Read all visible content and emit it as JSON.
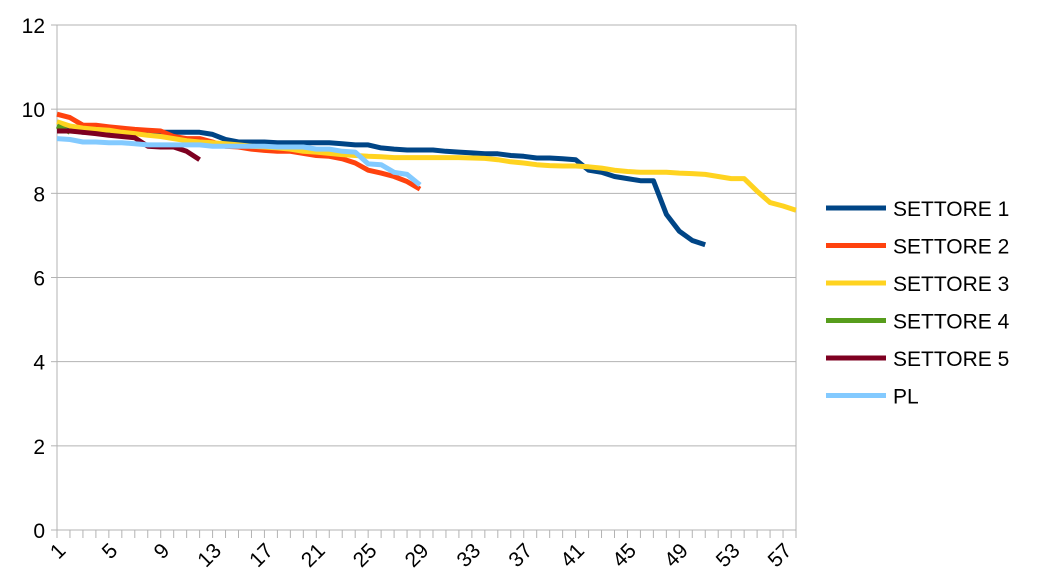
{
  "chart_data": {
    "type": "line",
    "title": "",
    "xlabel": "",
    "ylabel": "",
    "ylim": [
      0,
      12
    ],
    "yticks": [
      0,
      2,
      4,
      6,
      8,
      10,
      12
    ],
    "xlim": [
      1,
      58
    ],
    "xtick_labels": [
      "1",
      "5",
      "9",
      "13",
      "17",
      "21",
      "25",
      "29",
      "33",
      "37",
      "41",
      "45",
      "49",
      "53",
      "57"
    ],
    "grid": "horizontal",
    "legend_position": "right",
    "series": [
      {
        "name": "SETTORE 1",
        "color": "#004586",
        "values": [
          9.6,
          9.5,
          9.45,
          9.45,
          9.45,
          9.45,
          9.45,
          9.45,
          9.45,
          9.45,
          9.45,
          9.45,
          9.4,
          9.28,
          9.22,
          9.22,
          9.22,
          9.2,
          9.2,
          9.2,
          9.2,
          9.2,
          9.18,
          9.15,
          9.15,
          9.08,
          9.05,
          9.03,
          9.03,
          9.03,
          9.0,
          8.98,
          8.96,
          8.94,
          8.94,
          8.9,
          8.88,
          8.84,
          8.84,
          8.82,
          8.8,
          8.55,
          8.5,
          8.4,
          8.35,
          8.3,
          8.3,
          7.5,
          7.1,
          6.88,
          6.78
        ]
      },
      {
        "name": "SETTORE 2",
        "color": "#FF420E",
        "values": [
          9.88,
          9.8,
          9.62,
          9.62,
          9.58,
          9.55,
          9.52,
          9.5,
          9.48,
          9.35,
          9.3,
          9.3,
          9.22,
          9.12,
          9.1,
          9.05,
          9.02,
          9.0,
          9.0,
          8.95,
          8.9,
          8.88,
          8.82,
          8.72,
          8.55,
          8.48,
          8.4,
          8.28,
          8.1
        ]
      },
      {
        "name": "SETTORE 3",
        "color": "#FFD320",
        "values": [
          9.7,
          9.6,
          9.55,
          9.52,
          9.5,
          9.45,
          9.42,
          9.38,
          9.35,
          9.3,
          9.25,
          9.22,
          9.2,
          9.18,
          9.15,
          9.12,
          9.1,
          9.08,
          9.05,
          9.0,
          8.98,
          8.95,
          8.92,
          8.9,
          8.88,
          8.87,
          8.85,
          8.85,
          8.85,
          8.85,
          8.85,
          8.85,
          8.84,
          8.83,
          8.8,
          8.75,
          8.72,
          8.68,
          8.66,
          8.65,
          8.65,
          8.63,
          8.6,
          8.55,
          8.52,
          8.5,
          8.5,
          8.5,
          8.48,
          8.47,
          8.45,
          8.4,
          8.35,
          8.35,
          8.05,
          7.78,
          7.7,
          7.6
        ]
      },
      {
        "name": "SETTORE 4",
        "color": "#579D1C",
        "values": [
          9.6,
          9.45
        ]
      },
      {
        "name": "SETTORE 5",
        "color": "#7E0021",
        "values": [
          9.48,
          9.48,
          9.45,
          9.42,
          9.38,
          9.35,
          9.32,
          9.12,
          9.1,
          9.1,
          9.0,
          8.8
        ]
      },
      {
        "name": "PL",
        "color": "#83CAFF",
        "values": [
          9.3,
          9.28,
          9.22,
          9.22,
          9.2,
          9.2,
          9.18,
          9.15,
          9.15,
          9.15,
          9.15,
          9.15,
          9.12,
          9.12,
          9.12,
          9.12,
          9.12,
          9.1,
          9.1,
          9.1,
          9.05,
          9.05,
          9.0,
          8.98,
          8.7,
          8.68,
          8.5,
          8.45,
          8.2
        ]
      }
    ]
  }
}
